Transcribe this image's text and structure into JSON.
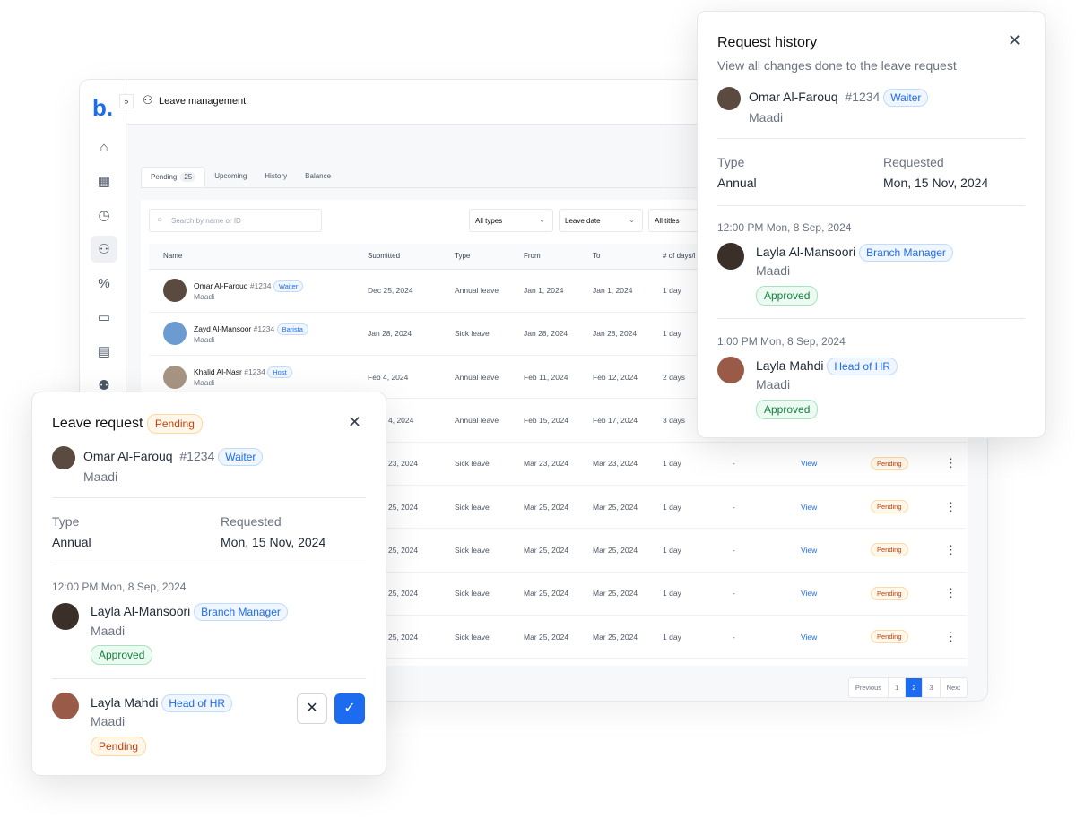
{
  "app": {
    "logo": "b.",
    "title": "Leave management",
    "expand": "»",
    "sidebar": [
      "home-icon",
      "table-icon",
      "clock-icon",
      "user-plus-icon",
      "percent-icon",
      "calendar-icon",
      "payroll-icon",
      "users-icon"
    ],
    "tabs": [
      {
        "label": "Pending",
        "count": "25"
      },
      {
        "label": "Upcoming"
      },
      {
        "label": "History"
      },
      {
        "label": "Balance"
      }
    ],
    "search_placeholder": "Search by name or ID",
    "filters": [
      "All types",
      "Leave date",
      "All titles"
    ],
    "columns": [
      "Name",
      "Submitted",
      "Type",
      "From",
      "To",
      "# of days/l"
    ],
    "rows": [
      {
        "name": "Omar Al-Farouq",
        "id": "#1234",
        "role": "Waiter",
        "branch": "Maadi",
        "submitted": "Dec 25, 2024",
        "type": "Annual leave",
        "from": "Jan 1, 2024",
        "to": "Jan 1, 2024",
        "days": "1 day",
        "avatar": "#5b4a3f"
      },
      {
        "name": "Zayd Al-Mansoor",
        "id": "#1234",
        "role": "Barista",
        "branch": "Maadi",
        "submitted": "Jan 28, 2024",
        "type": "Sick leave",
        "from": "Jan 28, 2024",
        "to": "Jan 28, 2024",
        "days": "1 day",
        "avatar": "#6b9bd1"
      },
      {
        "name": "Khalid Al-Nasr",
        "id": "#1234",
        "role": "Host",
        "branch": "Maadi",
        "submitted": "Feb 4, 2024",
        "type": "Annual leave",
        "from": "Feb 11, 2024",
        "to": "Feb 12, 2024",
        "days": "2 days",
        "avatar": "#a89482"
      },
      {
        "submitted": "4, 2024",
        "type": "Annual leave",
        "from": "Feb 15, 2024",
        "to": "Feb 17, 2024",
        "days": "3 days"
      },
      {
        "submitted": "23, 2024",
        "type": "Sick leave",
        "from": "Mar 23, 2024",
        "to": "Mar 23, 2024",
        "days": "1 day",
        "dash": "-",
        "view": "View",
        "status": "Pending"
      },
      {
        "submitted": "25, 2024",
        "type": "Sick leave",
        "from": "Mar 25, 2024",
        "to": "Mar 25, 2024",
        "days": "1 day",
        "dash": "-",
        "view": "View",
        "status": "Pending"
      },
      {
        "submitted": "25, 2024",
        "type": "Sick leave",
        "from": "Mar 25, 2024",
        "to": "Mar 25, 2024",
        "days": "1 day",
        "dash": "-",
        "view": "View",
        "status": "Pending"
      },
      {
        "submitted": "25, 2024",
        "type": "Sick leave",
        "from": "Mar 25, 2024",
        "to": "Mar 25, 2024",
        "days": "1 day",
        "dash": "-",
        "view": "View",
        "status": "Pending"
      },
      {
        "submitted": "25, 2024",
        "type": "Sick leave",
        "from": "Mar 25, 2024",
        "to": "Mar 25, 2024",
        "days": "1 day",
        "dash": "-",
        "view": "View",
        "status": "Pending"
      }
    ],
    "pager": [
      "Previous",
      "1",
      "2",
      "3",
      "Next"
    ]
  },
  "leave_request": {
    "title": "Leave request",
    "status": "Pending",
    "name": "Omar Al-Farouq",
    "id": "#1234",
    "role": "Waiter",
    "branch": "Maadi",
    "type_label": "Type",
    "type": "Annual",
    "requested_label": "Requested",
    "requested": "Mon, 15 Nov, 2024",
    "approvals": [
      {
        "time": "12:00 PM Mon, 8 Sep, 2024",
        "name": "Layla Al-Mansoori",
        "role": "Branch Manager",
        "branch": "Maadi",
        "status": "Approved"
      },
      {
        "name": "Layla Mahdi",
        "role": "Head of HR",
        "branch": "Maadi",
        "status": "Pending"
      }
    ]
  },
  "history": {
    "title": "Request history",
    "subtitle": "View all changes done to the leave request",
    "name": "Omar Al-Farouq",
    "id": "#1234",
    "role": "Waiter",
    "branch": "Maadi",
    "type_label": "Type",
    "type": "Annual",
    "requested_label": "Requested",
    "requested": "Mon, 15 Nov, 2024",
    "events": [
      {
        "time": "12:00 PM Mon, 8 Sep, 2024",
        "name": "Layla Al-Mansoori",
        "role": "Branch Manager",
        "branch": "Maadi",
        "status": "Approved"
      },
      {
        "time": "1:00 PM Mon, 8 Sep, 2024",
        "name": "Layla Mahdi",
        "role": "Head of HR",
        "branch": "Maadi",
        "status": "Approved"
      }
    ]
  }
}
